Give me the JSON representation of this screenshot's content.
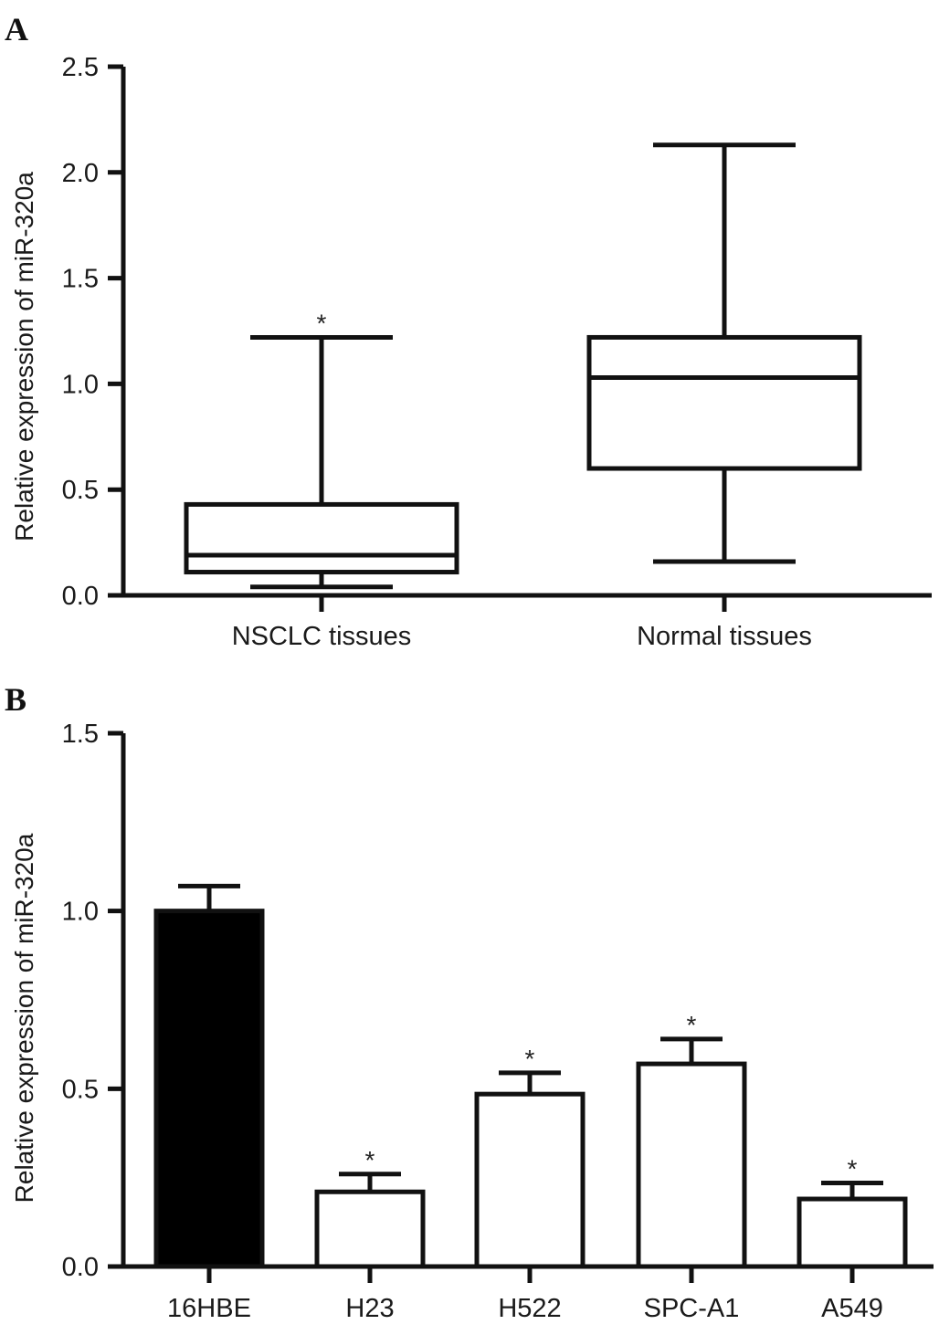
{
  "chart_data": [
    {
      "panel": "A",
      "type": "box",
      "title": "",
      "xlabel": "",
      "ylabel": "Relative expression of miR-320a",
      "ylim": [
        0,
        2.5
      ],
      "yticks": [
        "0.0",
        "0.5",
        "1.0",
        "1.5",
        "2.0",
        "2.5"
      ],
      "categories": [
        "NSCLC tissues",
        "Normal tissues"
      ],
      "boxes": [
        {
          "min": 0.04,
          "q1": 0.11,
          "median": 0.19,
          "q3": 0.43,
          "max": 1.22,
          "annotation": "*"
        },
        {
          "min": 0.16,
          "q1": 0.6,
          "median": 1.03,
          "q3": 1.22,
          "max": 2.13,
          "annotation": ""
        }
      ],
      "grid": false
    },
    {
      "panel": "B",
      "type": "bar",
      "title": "",
      "xlabel": "",
      "ylabel": "Relative expression of miR-320a",
      "ylim": [
        0,
        1.5
      ],
      "yticks": [
        "0.0",
        "0.5",
        "1.0",
        "1.5"
      ],
      "categories": [
        "16HBE",
        "H23",
        "H522",
        "SPC-A1",
        "A549"
      ],
      "values": [
        1.0,
        0.21,
        0.485,
        0.57,
        0.19
      ],
      "errors": [
        0.07,
        0.05,
        0.06,
        0.07,
        0.045
      ],
      "annotations": [
        "",
        "*",
        "*",
        "*",
        "*"
      ],
      "fills": [
        "#000000",
        "#ffffff",
        "#ffffff",
        "#ffffff",
        "#ffffff"
      ],
      "grid": false
    }
  ]
}
